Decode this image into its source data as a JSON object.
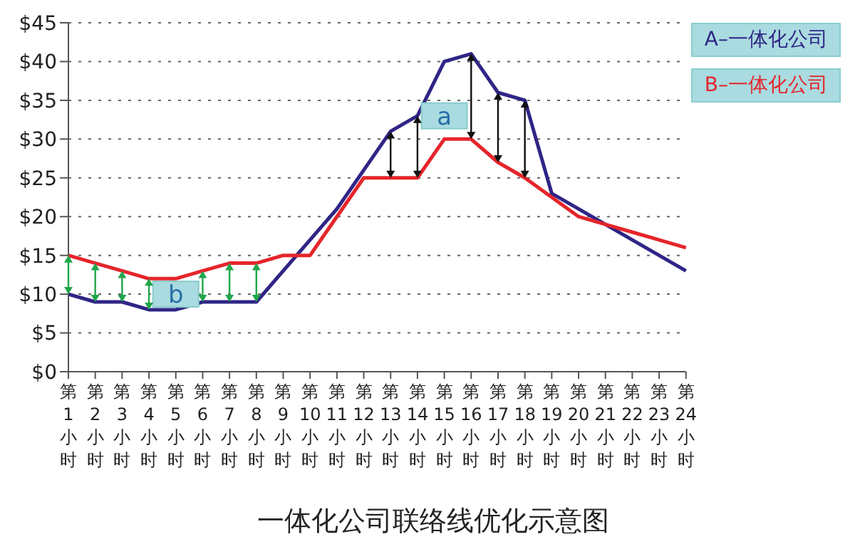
{
  "chart_data": {
    "type": "line",
    "title": "一体化公司联络线优化示意图",
    "categories": [
      "第1小时",
      "第2小时",
      "第3小时",
      "第4小时",
      "第5小时",
      "第6小时",
      "第7小时",
      "第8小时",
      "第9小时",
      "第10小时",
      "第11小时",
      "第12小时",
      "第13小时",
      "第14小时",
      "第15小时",
      "第16小时",
      "第17小时",
      "第18小时",
      "第19小时",
      "第20小时",
      "第21小时",
      "第22小时",
      "第23小时",
      "第24小时"
    ],
    "series": [
      {
        "name": "A–一体化公司",
        "color": "#2f2585",
        "values": [
          10,
          9,
          9,
          8,
          8,
          9,
          9,
          9,
          13,
          17,
          21,
          26,
          31,
          33,
          40,
          41,
          36,
          35,
          23,
          21,
          19,
          17,
          15,
          13
        ]
      },
      {
        "name": "B–一体化公司",
        "color": "#e5252b",
        "values": [
          15,
          14,
          13,
          12,
          12,
          13,
          14,
          14,
          15,
          15,
          20,
          25,
          25,
          25,
          30,
          30,
          27,
          25,
          22.5,
          20,
          19,
          18,
          17,
          16
        ]
      }
    ],
    "ylim": [
      0,
      45
    ],
    "yticks": [
      {
        "value": 0,
        "label": "$0"
      },
      {
        "value": 5,
        "label": "$5"
      },
      {
        "value": 10,
        "label": "$10"
      },
      {
        "value": 15,
        "label": "$15"
      },
      {
        "value": 20,
        "label": "$20"
      },
      {
        "value": 25,
        "label": "$25"
      },
      {
        "value": 30,
        "label": "$30"
      },
      {
        "value": 35,
        "label": "$35"
      },
      {
        "value": 40,
        "label": "$40"
      },
      {
        "value": 45,
        "label": "$45"
      }
    ],
    "grid": "y",
    "legend": "top right",
    "marker": "none",
    "line_style": "solid",
    "annotations": [
      {
        "text": "a",
        "x": "第15小时",
        "y": 33
      },
      {
        "text": "b",
        "x": "第5小时",
        "y": 10
      }
    ]
  }
}
